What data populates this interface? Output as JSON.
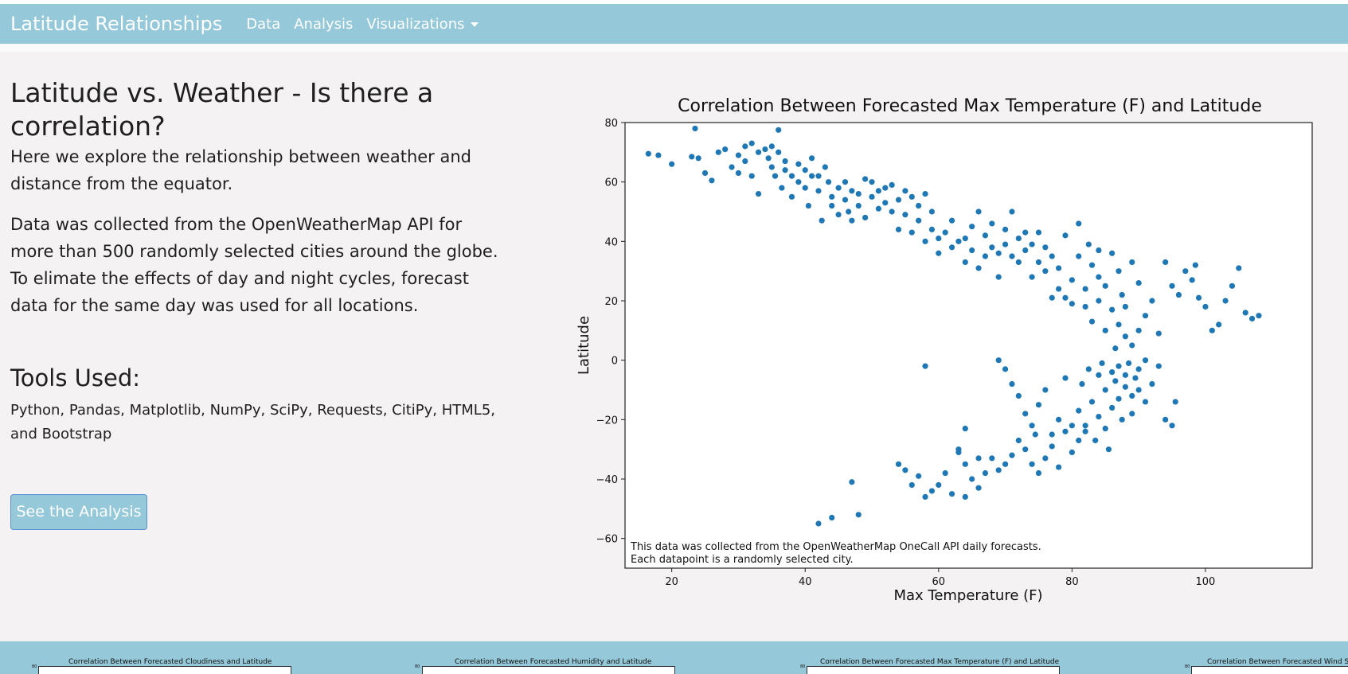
{
  "navbar": {
    "brand": "Latitude Relationships",
    "links": [
      "Data",
      "Analysis",
      "Visualizations"
    ],
    "dropdown_icon": "caret-down-icon"
  },
  "intro": {
    "heading": "Latitude vs. Weather - Is there a correlation?",
    "lead": "Here we explore the relationship between weather and distance from the equator.",
    "body": "Data was collected from the OpenWeatherMap API for more than 500 randomly selected cities around the globe. To elimate the effects of day and night cycles, forecast data for the same day was used for all locations."
  },
  "tools": {
    "heading": "Tools Used:",
    "list": "Python, Pandas, Matplotlib, NumPy, SciPy, Requests, CitiPy, HTML5, and Bootstrap"
  },
  "button": {
    "label": "See the Analysis"
  },
  "colors": {
    "navbar": "#95c8d8",
    "point": "#1f77b4",
    "page_bg": "#f4f2f2"
  },
  "chart_data": {
    "type": "scatter",
    "title": "Correlation Between Forecasted Max Temperature (F) and Latitude",
    "xlabel": "Max Temperature (F)",
    "ylabel": "Latitude",
    "xlim": [
      13,
      116
    ],
    "ylim": [
      -70,
      80
    ],
    "xticks": [
      20,
      40,
      60,
      80,
      100
    ],
    "yticks": [
      80,
      60,
      40,
      20,
      0,
      -20,
      -40,
      -60
    ],
    "grid": false,
    "annotation": [
      "This data was collected from the OpenWeatherMap OneCall API daily forecasts.",
      "Each datapoint is a randomly selected city."
    ],
    "points": [
      [
        16.5,
        69.5
      ],
      [
        18,
        69
      ],
      [
        20,
        66
      ],
      [
        23,
        68.5
      ],
      [
        23.5,
        78
      ],
      [
        24,
        68
      ],
      [
        25,
        63
      ],
      [
        26,
        60.5
      ],
      [
        27,
        70
      ],
      [
        28,
        71
      ],
      [
        29,
        65
      ],
      [
        30,
        63
      ],
      [
        30,
        69
      ],
      [
        31,
        67
      ],
      [
        31,
        72
      ],
      [
        32,
        73
      ],
      [
        32,
        62
      ],
      [
        33,
        70
      ],
      [
        33,
        56
      ],
      [
        34,
        71
      ],
      [
        34.5,
        68
      ],
      [
        35,
        72
      ],
      [
        35,
        65
      ],
      [
        35.5,
        62
      ],
      [
        36,
        70
      ],
      [
        36,
        77.5
      ],
      [
        36.5,
        58
      ],
      [
        37,
        67
      ],
      [
        37,
        64
      ],
      [
        38,
        62
      ],
      [
        38,
        55
      ],
      [
        39,
        60
      ],
      [
        39,
        66
      ],
      [
        40,
        64
      ],
      [
        40,
        58
      ],
      [
        40.5,
        52
      ],
      [
        41,
        62
      ],
      [
        41,
        68
      ],
      [
        42,
        62
      ],
      [
        42,
        57
      ],
      [
        42.5,
        47
      ],
      [
        43,
        65
      ],
      [
        43.5,
        60
      ],
      [
        44,
        55
      ],
      [
        44,
        52
      ],
      [
        45,
        58
      ],
      [
        45,
        49
      ],
      [
        46,
        60
      ],
      [
        46,
        54
      ],
      [
        46.5,
        50
      ],
      [
        47,
        57
      ],
      [
        47,
        47
      ],
      [
        48,
        56
      ],
      [
        48,
        52
      ],
      [
        49,
        61
      ],
      [
        49,
        48
      ],
      [
        50,
        55
      ],
      [
        50,
        60
      ],
      [
        51,
        51
      ],
      [
        51,
        57
      ],
      [
        52,
        58
      ],
      [
        52,
        53
      ],
      [
        53,
        59
      ],
      [
        53,
        50
      ],
      [
        54,
        44
      ],
      [
        54,
        54
      ],
      [
        55,
        57
      ],
      [
        55,
        49
      ],
      [
        56,
        55
      ],
      [
        56,
        43
      ],
      [
        57,
        52
      ],
      [
        57,
        47
      ],
      [
        58,
        56
      ],
      [
        58,
        40
      ],
      [
        59,
        44
      ],
      [
        59,
        50
      ],
      [
        60,
        41
      ],
      [
        60,
        36
      ],
      [
        61,
        43
      ],
      [
        62,
        38
      ],
      [
        62,
        47
      ],
      [
        63,
        40
      ],
      [
        64,
        41
      ],
      [
        64,
        33
      ],
      [
        65,
        45
      ],
      [
        65,
        37
      ],
      [
        66,
        50
      ],
      [
        66,
        31
      ],
      [
        67,
        42
      ],
      [
        67,
        35
      ],
      [
        68,
        38
      ],
      [
        68,
        46
      ],
      [
        69,
        36
      ],
      [
        69,
        28
      ],
      [
        70,
        44
      ],
      [
        70,
        39
      ],
      [
        71,
        35
      ],
      [
        71,
        50
      ],
      [
        72,
        41
      ],
      [
        72,
        33
      ],
      [
        73,
        43
      ],
      [
        73,
        37
      ],
      [
        74,
        28
      ],
      [
        74,
        39
      ],
      [
        75,
        33
      ],
      [
        75,
        43
      ],
      [
        76,
        30
      ],
      [
        76,
        38
      ],
      [
        77,
        35
      ],
      [
        77,
        21
      ],
      [
        78,
        24
      ],
      [
        78,
        31
      ],
      [
        79,
        42
      ],
      [
        79,
        21
      ],
      [
        80,
        19
      ],
      [
        80,
        27
      ],
      [
        81,
        46
      ],
      [
        81,
        35
      ],
      [
        82,
        18
      ],
      [
        82,
        24
      ],
      [
        82.5,
        39
      ],
      [
        83,
        32
      ],
      [
        83,
        13
      ],
      [
        84,
        28
      ],
      [
        84,
        20
      ],
      [
        84,
        37
      ],
      [
        85,
        10
      ],
      [
        85,
        25
      ],
      [
        86,
        17
      ],
      [
        86,
        36
      ],
      [
        86.5,
        4
      ],
      [
        87,
        12
      ],
      [
        87,
        30
      ],
      [
        87.5,
        22
      ],
      [
        88,
        8
      ],
      [
        88,
        18
      ],
      [
        89,
        33
      ],
      [
        89,
        5
      ],
      [
        90,
        10
      ],
      [
        90,
        26
      ],
      [
        91,
        0
      ],
      [
        91,
        15
      ],
      [
        92,
        20
      ],
      [
        93,
        9
      ],
      [
        94,
        33
      ],
      [
        95,
        25
      ],
      [
        96,
        22
      ],
      [
        97,
        30
      ],
      [
        98,
        27
      ],
      [
        98.5,
        32
      ],
      [
        99,
        21
      ],
      [
        100,
        18
      ],
      [
        101,
        10
      ],
      [
        102,
        12
      ],
      [
        103,
        20
      ],
      [
        104,
        25
      ],
      [
        105,
        31
      ],
      [
        106,
        16
      ],
      [
        107,
        14
      ],
      [
        108,
        15
      ],
      [
        58,
        -2
      ],
      [
        69,
        0
      ],
      [
        70,
        -3
      ],
      [
        71,
        -8
      ],
      [
        72,
        -12
      ],
      [
        73,
        -18
      ],
      [
        74,
        -22
      ],
      [
        75,
        -15
      ],
      [
        76,
        -10
      ],
      [
        77,
        -25
      ],
      [
        78,
        -20
      ],
      [
        79,
        -6
      ],
      [
        80,
        -22
      ],
      [
        81,
        -17
      ],
      [
        81.5,
        -8
      ],
      [
        82,
        -24
      ],
      [
        82.5,
        -3
      ],
      [
        83,
        -14
      ],
      [
        83.5,
        -27
      ],
      [
        84,
        -5
      ],
      [
        84,
        -19
      ],
      [
        84.5,
        -1
      ],
      [
        85,
        -10
      ],
      [
        85,
        -23
      ],
      [
        85.5,
        -30
      ],
      [
        86,
        -4
      ],
      [
        86,
        -16
      ],
      [
        86.5,
        -7
      ],
      [
        87,
        -2
      ],
      [
        87,
        -13
      ],
      [
        87.5,
        -20
      ],
      [
        88,
        -9
      ],
      [
        88,
        -5
      ],
      [
        88.5,
        -1
      ],
      [
        89,
        -12
      ],
      [
        89,
        -18
      ],
      [
        89.5,
        -6
      ],
      [
        90,
        -3
      ],
      [
        90,
        -10
      ],
      [
        91,
        -14
      ],
      [
        92,
        -8
      ],
      [
        93,
        -2
      ],
      [
        94,
        -20
      ],
      [
        95,
        -22
      ],
      [
        95.5,
        -14
      ],
      [
        73,
        -30
      ],
      [
        74,
        -35
      ],
      [
        75,
        -38
      ],
      [
        76,
        -33
      ],
      [
        77,
        -29
      ],
      [
        78,
        -36
      ],
      [
        79,
        -24
      ],
      [
        80,
        -31
      ],
      [
        81,
        -27
      ],
      [
        82,
        -22
      ],
      [
        74.5,
        -25
      ],
      [
        72,
        -27
      ],
      [
        71,
        -32
      ],
      [
        70,
        -35
      ],
      [
        69,
        -37
      ],
      [
        68,
        -33
      ],
      [
        67,
        -38
      ],
      [
        66,
        -43
      ],
      [
        65,
        -40
      ],
      [
        64,
        -35
      ],
      [
        63,
        -31
      ],
      [
        62,
        -45
      ],
      [
        61,
        -38
      ],
      [
        60,
        -42
      ],
      [
        59,
        -44
      ],
      [
        58,
        -46
      ],
      [
        57,
        -39
      ],
      [
        56,
        -42
      ],
      [
        55,
        -37
      ],
      [
        54,
        -35
      ],
      [
        63,
        -30
      ],
      [
        64,
        -23
      ],
      [
        48,
        -52
      ],
      [
        47,
        -41
      ],
      [
        44,
        -53
      ],
      [
        42,
        -55
      ],
      [
        64,
        -46
      ],
      [
        66,
        -33
      ]
    ]
  },
  "thumbnails": [
    "Correlation Between Forecasted Cloudiness and Latitude",
    "Correlation Between Forecasted Humidity and Latitude",
    "Correlation Between Forecasted Max Temperature (F) and Latitude",
    "Correlation Between Forecasted Wind Sp"
  ]
}
